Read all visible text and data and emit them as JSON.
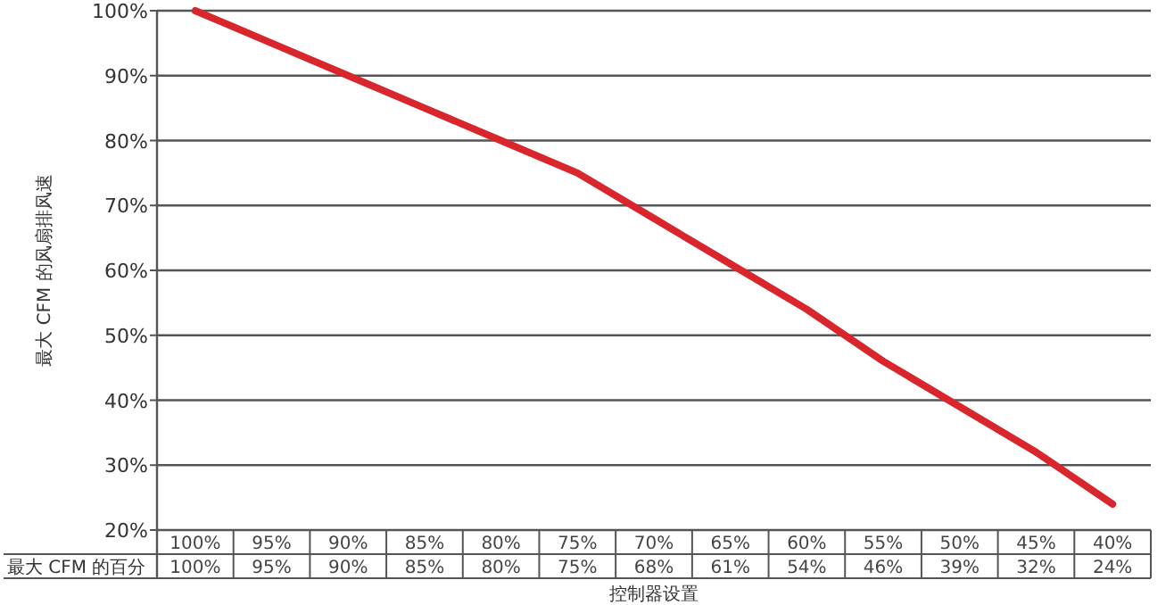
{
  "chart_data": {
    "type": "line",
    "xlabel": "控制器设置",
    "ylabel": "最大 CFM 的风扇排风速",
    "categories": [
      "100%",
      "95%",
      "90%",
      "85%",
      "80%",
      "75%",
      "70%",
      "65%",
      "60%",
      "55%",
      "50%",
      "45%",
      "40%"
    ],
    "series": [
      {
        "name": "最大 CFM 的百分",
        "color": "#d9262c",
        "values": [
          100,
          95,
          90,
          85,
          80,
          75,
          68,
          61,
          54,
          46,
          39,
          32,
          24
        ],
        "value_labels": [
          "100%",
          "95%",
          "90%",
          "85%",
          "80%",
          "75%",
          "68%",
          "61%",
          "54%",
          "46%",
          "39%",
          "32%",
          "24%"
        ]
      }
    ],
    "ylim": [
      20,
      100
    ],
    "yticks": [
      {
        "value": 20,
        "label": "20%"
      },
      {
        "value": 30,
        "label": "30%"
      },
      {
        "value": 40,
        "label": "40%"
      },
      {
        "value": 50,
        "label": "50%"
      },
      {
        "value": 60,
        "label": "60%"
      },
      {
        "value": 70,
        "label": "70%"
      },
      {
        "value": 80,
        "label": "80%"
      },
      {
        "value": 90,
        "label": "90%"
      },
      {
        "value": 100,
        "label": "100%"
      }
    ],
    "grid": "y"
  }
}
